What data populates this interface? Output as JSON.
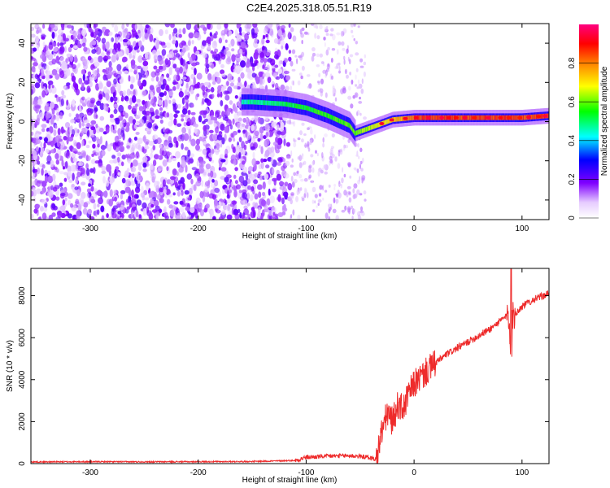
{
  "title": "C2E4.2025.318.05.51.R19",
  "chart_data": [
    {
      "type": "heatmap",
      "xlabel": "Height of straight line (km)",
      "ylabel": "Frequency (Hz)",
      "xlim": [
        -355,
        125
      ],
      "ylim": [
        -50,
        50
      ],
      "x_ticks": [
        -300,
        -200,
        -100,
        0,
        100
      ],
      "y_ticks": [
        -40,
        -20,
        0,
        20,
        40
      ],
      "colorbar": {
        "label": "Normalized spectral amplitude",
        "ticks": [
          0.0,
          0.2,
          0.4,
          0.6,
          0.8
        ],
        "range": [
          0,
          1
        ],
        "colormap": [
          "#ffffff",
          "#8000ff",
          "#0000ff",
          "#00ffff",
          "#00ff00",
          "#ffff00",
          "#ff8000",
          "#ff0000",
          "#ff0080"
        ]
      },
      "ridge": {
        "x": [
          -150,
          -120,
          -100,
          -80,
          -60,
          -55,
          -40,
          -20,
          0,
          50,
          100,
          125
        ],
        "y": [
          10,
          9,
          7,
          3,
          -2,
          -6,
          -3,
          1,
          2,
          2,
          2,
          3
        ]
      }
    },
    {
      "type": "line",
      "xlabel": "Height of straight line (km)",
      "ylabel": "SNR (10 * v/v)",
      "xlim": [
        -355,
        125
      ],
      "ylim": [
        0,
        9300
      ],
      "x_ticks": [
        -300,
        -200,
        -100,
        0,
        100
      ],
      "y_ticks": [
        0,
        2000,
        4000,
        6000,
        8000
      ],
      "color": "#ee2b2b",
      "x": [
        -355,
        -300,
        -250,
        -200,
        -150,
        -110,
        -100,
        -80,
        -60,
        -45,
        -35,
        -30,
        -25,
        -20,
        -15,
        -10,
        -5,
        0,
        10,
        20,
        30,
        40,
        50,
        60,
        70,
        80,
        85,
        88,
        90,
        92,
        95,
        100,
        110,
        125
      ],
      "y": [
        80,
        90,
        85,
        90,
        100,
        150,
        300,
        350,
        380,
        320,
        200,
        1500,
        2400,
        2000,
        2800,
        2600,
        3300,
        3800,
        4300,
        4800,
        5200,
        5500,
        5800,
        6100,
        6400,
        6800,
        7000,
        6900,
        5500,
        7200,
        7200,
        7500,
        7800,
        8100
      ]
    }
  ]
}
